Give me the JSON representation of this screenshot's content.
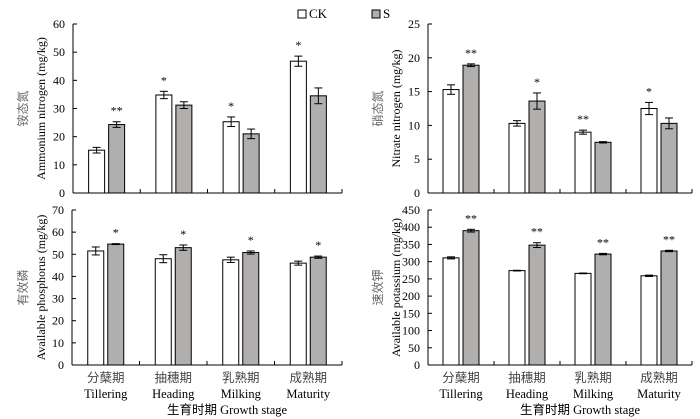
{
  "chart_data": [
    {
      "type": "bar",
      "id": "ammonium",
      "ylabel_cn": "铵态氮",
      "ylabel": "Ammonium nitrogen (mg/kg)",
      "ylim": [
        0,
        60
      ],
      "yticks": [
        0,
        10,
        20,
        30,
        40,
        50,
        60
      ],
      "categories": [
        "Tillering",
        "Heading",
        "Milking",
        "Maturity"
      ],
      "series": [
        {
          "name": "CK",
          "values": [
            15.2,
            34.8,
            25.3,
            46.8
          ],
          "errors": [
            1.0,
            1.3,
            1.7,
            1.8
          ],
          "significance": [
            "",
            "*",
            "*",
            "*"
          ]
        },
        {
          "name": "S",
          "values": [
            24.3,
            31.2,
            21.0,
            34.5
          ],
          "errors": [
            1.0,
            1.2,
            1.7,
            2.8
          ],
          "significance": [
            "**",
            "",
            "",
            ""
          ]
        }
      ]
    },
    {
      "type": "bar",
      "id": "nitrate",
      "ylabel_cn": "硝态氮",
      "ylabel": "Nitrate nitrogen (mg/kg)",
      "ylim": [
        0,
        25
      ],
      "yticks": [
        0,
        5,
        10,
        15,
        20,
        25
      ],
      "categories": [
        "Tillering",
        "Heading",
        "Milking",
        "Maturity"
      ],
      "series": [
        {
          "name": "CK",
          "values": [
            15.3,
            10.3,
            9.0,
            12.5
          ],
          "errors": [
            0.7,
            0.4,
            0.3,
            0.9
          ],
          "significance": [
            "",
            "",
            "**",
            "*"
          ]
        },
        {
          "name": "S",
          "values": [
            18.9,
            13.6,
            7.5,
            10.3
          ],
          "errors": [
            0.2,
            1.2,
            0.1,
            0.8
          ],
          "significance": [
            "**",
            "*",
            "",
            ""
          ]
        }
      ]
    },
    {
      "type": "bar",
      "id": "phosphorus",
      "ylabel_cn": "有效磷",
      "ylabel": "Available phosphorus (mg/kg)",
      "ylim": [
        0,
        70
      ],
      "yticks": [
        0,
        10,
        20,
        30,
        40,
        50,
        60,
        70
      ],
      "categories": [
        "Tillering",
        "Heading",
        "Milking",
        "Maturity"
      ],
      "categories_cn": [
        "分蘖期",
        "抽穗期",
        "乳熟期",
        "成熟期"
      ],
      "xlabel": "生育时期 Growth stage",
      "series": [
        {
          "name": "CK",
          "values": [
            51.5,
            48.0,
            47.5,
            46.0
          ],
          "errors": [
            1.8,
            1.8,
            1.2,
            0.9
          ],
          "significance": [
            "",
            "",
            "",
            ""
          ]
        },
        {
          "name": "S",
          "values": [
            54.6,
            53.0,
            50.8,
            48.7
          ],
          "errors": [
            0.2,
            1.2,
            0.7,
            0.5
          ],
          "significance": [
            "*",
            "*",
            "*",
            "*"
          ]
        }
      ]
    },
    {
      "type": "bar",
      "id": "potassium",
      "ylabel_cn": "速效钾",
      "ylabel": "Available potassium (mg/kg)",
      "ylim": [
        0,
        450
      ],
      "yticks": [
        0,
        50,
        100,
        150,
        200,
        250,
        300,
        350,
        400,
        450
      ],
      "categories": [
        "Tillering",
        "Heading",
        "Milking",
        "Maturity"
      ],
      "categories_cn": [
        "分蘖期",
        "抽穗期",
        "乳熟期",
        "成熟期"
      ],
      "xlabel": "生育时期 Growth stage",
      "series": [
        {
          "name": "CK",
          "values": [
            311,
            274,
            266,
            259
          ],
          "errors": [
            3,
            1,
            1,
            2
          ],
          "significance": [
            "",
            "",
            "",
            ""
          ]
        },
        {
          "name": "S",
          "values": [
            390,
            348,
            322,
            331
          ],
          "errors": [
            4,
            7,
            2,
            2
          ],
          "significance": [
            "**",
            "**",
            "**",
            "**"
          ]
        }
      ]
    }
  ],
  "legend": {
    "position": "top",
    "items": [
      {
        "label": "CK",
        "color": "#ffffff"
      },
      {
        "label": "S",
        "color": "#b1aeae"
      }
    ]
  },
  "colors": {
    "ck_fill": "#ffffff",
    "s_fill": "#b1aeae",
    "axis": "#000000"
  }
}
